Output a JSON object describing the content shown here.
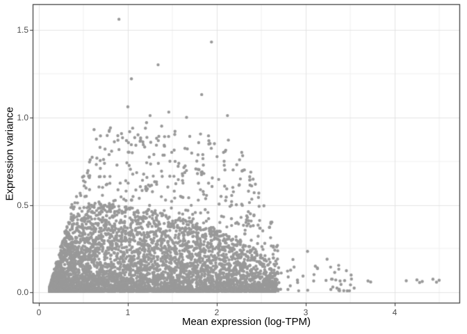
{
  "chart_data": {
    "type": "scatter",
    "title": "",
    "xlabel": "Mean expression (log-TPM)",
    "ylabel": "Expression variance",
    "x_ticks": [
      0,
      1,
      2,
      3,
      4
    ],
    "x_tick_labels": [
      "0",
      "1",
      "2",
      "3",
      "4"
    ],
    "y_ticks": [
      0,
      0.5,
      1.0,
      1.5
    ],
    "y_tick_labels": [
      "0.0",
      "0.5",
      "1.0",
      "1.5"
    ],
    "x_minor_ticks": [
      0.5,
      1.5,
      2.5,
      3.5,
      4.5
    ],
    "y_minor_ticks": [
      0.25,
      0.75,
      1.25
    ],
    "xlim": [
      -0.0625,
      4.727
    ],
    "ylim": [
      -0.058,
      1.642
    ],
    "grid": "major-and-minor",
    "legend": "none",
    "point_color": "#999999",
    "point_radius": 2.2,
    "grid_major_color": "#e3e3e3",
    "grid_minor_color": "#f0f0f0",
    "panel_border_color": "#333333",
    "tick_color": "#333333",
    "tick_label_color": "#4d4d4d",
    "axis_title_color": "#000000",
    "background_color": "#ffffff",
    "outlier_points": [
      [
        0.9,
        1.56
      ],
      [
        1.94,
        1.43
      ],
      [
        1.34,
        1.3
      ],
      [
        1.04,
        1.22
      ],
      [
        1.83,
        1.13
      ],
      [
        1.0,
        1.06
      ],
      [
        1.46,
        1.03
      ],
      [
        1.25,
        1.01
      ],
      [
        2.12,
        1.01
      ],
      [
        1.66,
        1.0
      ],
      [
        1.21,
        0.97
      ],
      [
        1.38,
        0.95
      ],
      [
        0.62,
        0.93
      ],
      [
        0.79,
        0.92
      ],
      [
        1.53,
        0.92
      ],
      [
        2.13,
        0.87
      ],
      [
        2.28,
        0.8
      ],
      [
        2.31,
        0.7
      ],
      [
        2.18,
        0.6
      ],
      [
        2.42,
        0.57
      ],
      [
        3.02,
        0.235
      ],
      [
        3.24,
        0.19
      ],
      [
        3.37,
        0.155
      ],
      [
        3.51,
        0.1
      ],
      [
        3.7,
        0.066
      ],
      [
        3.73,
        0.06
      ],
      [
        4.13,
        0.067
      ],
      [
        4.25,
        0.072
      ],
      [
        4.28,
        0.057
      ],
      [
        4.31,
        0.063
      ],
      [
        4.43,
        0.076
      ],
      [
        4.47,
        0.059
      ],
      [
        4.5,
        0.07
      ]
    ],
    "cloud": {
      "seed": 1337,
      "description": "Dense bottom-heavy cloud of ~6300 gene points; variance high at low-mid expression, shrinking toward high expression",
      "layers": [
        {
          "name": "dense-mass",
          "n": 4600,
          "x_min": 0.12,
          "x_span": 2.55,
          "x_pow": 1.45,
          "y_pow": 2.1,
          "y_base": 0.006,
          "envelope": [
            [
              0.12,
              0.03
            ],
            [
              0.18,
              0.15
            ],
            [
              0.25,
              0.28
            ],
            [
              0.32,
              0.4
            ],
            [
              0.45,
              0.48
            ],
            [
              0.7,
              0.52
            ],
            [
              1.1,
              0.48
            ],
            [
              1.5,
              0.44
            ],
            [
              1.9,
              0.38
            ],
            [
              2.2,
              0.32
            ],
            [
              2.45,
              0.26
            ],
            [
              2.6,
              0.15
            ],
            [
              2.75,
              0.08
            ],
            [
              3.0,
              0.05
            ]
          ]
        },
        {
          "name": "mid-scatter",
          "n": 780,
          "x_min": 0.25,
          "x_span": 2.45,
          "x_pow": 1.1,
          "y_pow": 1.25,
          "y_base": 0.006,
          "envelope": [
            [
              0.15,
              0.05
            ],
            [
              0.3,
              0.4
            ],
            [
              0.5,
              0.7
            ],
            [
              0.65,
              0.9
            ],
            [
              0.8,
              0.95
            ],
            [
              1.7,
              0.93
            ],
            [
              2.0,
              0.88
            ],
            [
              2.3,
              0.78
            ],
            [
              2.55,
              0.5
            ],
            [
              2.7,
              0.3
            ],
            [
              3.0,
              0.27
            ],
            [
              3.3,
              0.17
            ],
            [
              3.6,
              0.12
            ]
          ]
        },
        {
          "name": "right-tail",
          "n": 50,
          "x_min": 2.55,
          "x_span": 1.0,
          "x_pow": 1.0,
          "y_pow": 1.8,
          "y_base": 0.01,
          "envelope": [
            [
              2.55,
              0.28
            ],
            [
              3.0,
              0.25
            ],
            [
              3.2,
              0.17
            ],
            [
              3.55,
              0.11
            ]
          ]
        }
      ]
    }
  }
}
